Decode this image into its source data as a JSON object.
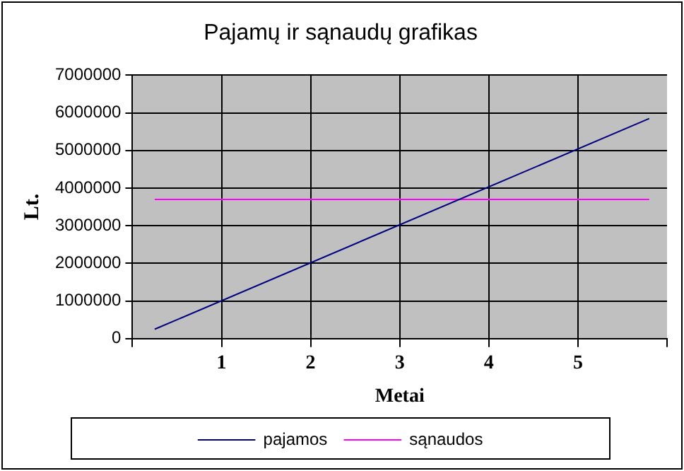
{
  "chart_data": {
    "type": "line",
    "title": "Pajamų ir sąnaudų grafikas",
    "xlabel": "Metai",
    "ylabel": "Lt.",
    "x": [
      0.25,
      5.8
    ],
    "series": [
      {
        "name": "pajamos",
        "color": "#000080",
        "values": [
          250000,
          5850000
        ]
      },
      {
        "name": "sąnaudos",
        "color": "#ff00ff",
        "values": [
          3700000,
          3700000
        ]
      }
    ],
    "xlim": [
      0,
      6
    ],
    "xticks": [
      {
        "value": 0,
        "label": null
      },
      1,
      2,
      3,
      4,
      5,
      {
        "value": 6,
        "label": null
      }
    ],
    "ylim": [
      0,
      7000000
    ],
    "yticks": [
      0,
      1000000,
      2000000,
      3000000,
      4000000,
      5000000,
      6000000,
      7000000
    ],
    "grid": true,
    "legend": "bottom",
    "marker": "none",
    "line_style": "solid"
  }
}
